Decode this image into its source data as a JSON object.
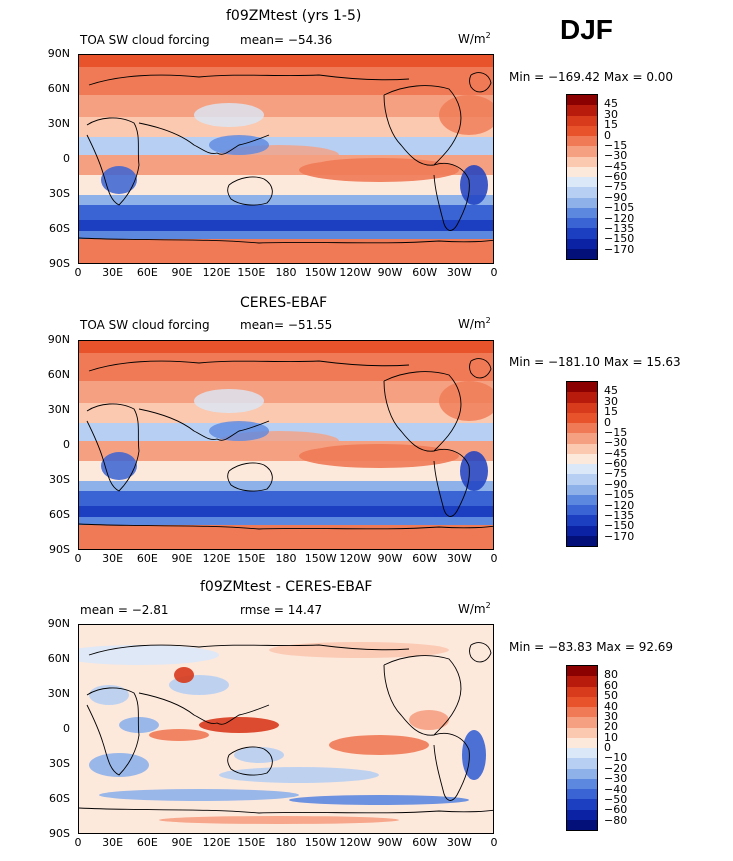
{
  "season": "DJF",
  "panels": [
    {
      "title": "f09ZMtest (yrs 1-5)",
      "left_label": "TOA SW cloud forcing",
      "stat_text": "mean= −54.36",
      "units_base": "W/m",
      "units_exp": "2",
      "minmax": "Min = −169.42 Max =   0.00",
      "colorbar_labels": [
        "45",
        "30",
        "15",
        "0",
        "−15",
        "−30",
        "−45",
        "−60",
        "−75",
        "−90",
        "−105",
        "−120",
        "−135",
        "−150",
        "−170"
      ],
      "colorbar_colors": [
        "#8b0000",
        "#b81a0b",
        "#d83a1c",
        "#e8532c",
        "#f07a55",
        "#f6a082",
        "#fbc8b0",
        "#fde8dc",
        "#dbe8f8",
        "#b7cff2",
        "#8fb1ea",
        "#5d88e0",
        "#3a63d4",
        "#1c3fc2",
        "#0a22a3",
        "#04107a"
      ]
    },
    {
      "title": "CERES-EBAF",
      "left_label": "TOA SW cloud forcing",
      "stat_text": "mean= −51.55",
      "units_base": "W/m",
      "units_exp": "2",
      "minmax": "Min = −181.10 Max =  15.63",
      "colorbar_labels": [
        "45",
        "30",
        "15",
        "0",
        "−15",
        "−30",
        "−45",
        "−60",
        "−75",
        "−90",
        "−105",
        "−120",
        "−135",
        "−150",
        "−170"
      ],
      "colorbar_colors": [
        "#8b0000",
        "#b81a0b",
        "#d83a1c",
        "#e8532c",
        "#f07a55",
        "#f6a082",
        "#fbc8b0",
        "#fde8dc",
        "#dbe8f8",
        "#b7cff2",
        "#8fb1ea",
        "#5d88e0",
        "#3a63d4",
        "#1c3fc2",
        "#0a22a3",
        "#04107a"
      ]
    },
    {
      "title": "f09ZMtest - CERES-EBAF",
      "left_label": "mean =   −2.81",
      "stat_text": "rmse =  14.47",
      "units_base": "W/m",
      "units_exp": "2",
      "minmax": "Min = −83.83 Max =  92.69",
      "colorbar_labels": [
        "80",
        "60",
        "50",
        "40",
        "30",
        "20",
        "10",
        "0",
        "−10",
        "−20",
        "−30",
        "−40",
        "−50",
        "−60",
        "−80"
      ],
      "colorbar_colors": [
        "#8b0000",
        "#b81a0b",
        "#d83a1c",
        "#e8532c",
        "#f07a55",
        "#f6a082",
        "#fbc8b0",
        "#fde8dc",
        "#dbe8f8",
        "#b7cff2",
        "#8fb1ea",
        "#5d88e0",
        "#3a63d4",
        "#1c3fc2",
        "#0a22a3",
        "#04107a"
      ]
    }
  ],
  "lat_labels": [
    "90N",
    "60N",
    "30N",
    "0",
    "30S",
    "60S",
    "90S"
  ],
  "lon_labels": [
    "0",
    "30E",
    "60E",
    "90E",
    "120E",
    "150E",
    "180",
    "150W",
    "120W",
    "90W",
    "60W",
    "30W",
    "0"
  ]
}
